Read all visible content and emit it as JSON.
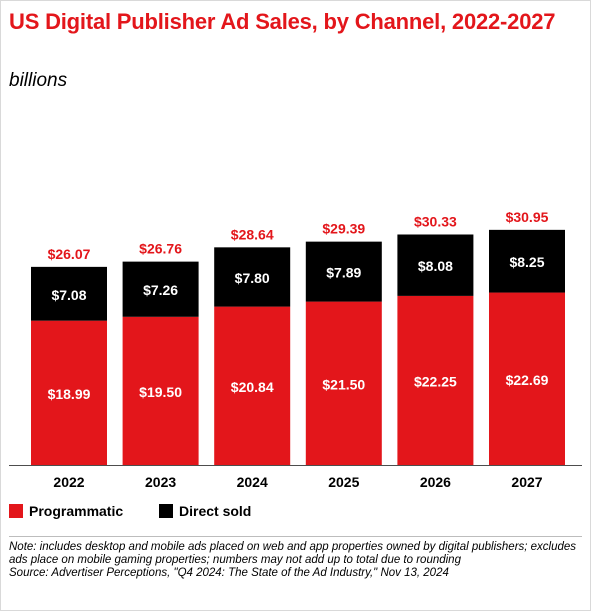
{
  "title": "US Digital Publisher Ad Sales, by Channel, 2022-2027",
  "subtitle": "billions",
  "colors": {
    "programmatic": "#e3161b",
    "direct_sold": "#000000",
    "total_label": "#e3161b"
  },
  "chart_data": {
    "type": "bar",
    "stacked": true,
    "title": "US Digital Publisher Ad Sales, by Channel, 2022-2027",
    "ylabel": "billions",
    "categories": [
      "2022",
      "2023",
      "2024",
      "2025",
      "2026",
      "2027"
    ],
    "series": [
      {
        "name": "Programmatic",
        "values": [
          18.99,
          19.5,
          20.84,
          21.5,
          22.25,
          22.69
        ],
        "labels": [
          "$18.99",
          "$19.50",
          "$20.84",
          "$21.50",
          "$22.25",
          "$22.69"
        ]
      },
      {
        "name": "Direct sold",
        "values": [
          7.08,
          7.26,
          7.8,
          7.89,
          8.08,
          8.25
        ],
        "labels": [
          "$7.08",
          "$7.26",
          "$7.80",
          "$7.89",
          "$8.08",
          "$8.25"
        ]
      }
    ],
    "totals": [
      26.07,
      26.76,
      28.64,
      29.39,
      30.33,
      30.95
    ],
    "total_labels": [
      "$26.07",
      "$26.76",
      "$28.64",
      "$29.39",
      "$30.33",
      "$30.95"
    ],
    "ylim": [
      0,
      35
    ],
    "grid": false,
    "legend": "bottom-left"
  },
  "legend": {
    "items": [
      "Programmatic",
      "Direct sold"
    ]
  },
  "note": {
    "text": "Note: includes desktop and mobile ads placed on web and app properties owned by digital publishers; excludes ads place on mobile gaming properties; numbers may not add up to total due to rounding",
    "source": "Source: Advertiser Perceptions, \"Q4 2024: The State of the Ad Industry,\" Nov 13, 2024"
  }
}
